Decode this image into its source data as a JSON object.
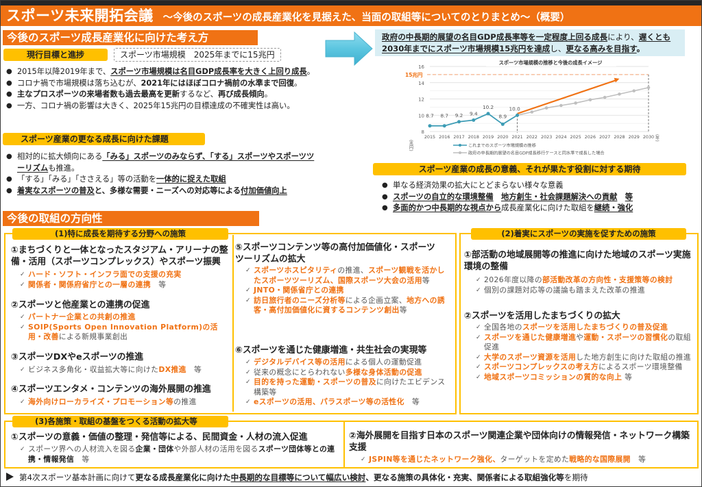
{
  "header": {
    "title": "スポーツ未来開拓会議",
    "subtitle": "～今後のスポーツの成長産業化を見据えた、当面の取組等についてのとりまとめ～（概要）"
  },
  "left_top": {
    "section_title": "今後のスポーツ成長産業化に向けた考え方",
    "goal_pill": "現行目標と進捗",
    "goal_box": "スポーツ市場規模　2025年までに15兆円",
    "bullets": [
      {
        "pre": "2015年以降2019年まで、",
        "bold": "スポーツ市場規模は名目GDP成長率を大きく上回り成長",
        "post": "。"
      },
      {
        "pre": "コロナ禍で市場規模は落ち込むが、",
        "bold": "2021年にはほぼコロナ禍前の水準まで回復",
        "post": "。"
      },
      {
        "bold1": "主なプロスポーツの来場者数も過去最高を更新",
        "mid": "するなど、",
        "bold2": "再び成長傾向",
        "post": "。"
      },
      {
        "text": "一方、コロナ禍の影響は大きく、2025年15兆円の目標達成の不確実性は高い。"
      }
    ]
  },
  "issues": {
    "pill": "スポーツ産業の更なる成長に向けた課題",
    "bullets": [
      {
        "pre": "相対的に拡大傾向にある",
        "bold": "「みる」スポーツのみならず、「する」スポーツやスポーツツーリズム",
        "post": "も推進。"
      },
      {
        "pre": "「する」「みる」「ささえる」等の活動を",
        "bold": "一体的に捉えた取組"
      },
      {
        "bold1": "着実なスポーツの普及",
        "mid": "と、多様な需要・ニーズへの対応等による",
        "bold2": "付加価値向上"
      }
    ]
  },
  "target_box": {
    "u1": "政府の中長期的展望の名目GDP成長率等を一定程度上回る成長",
    "mid": "により、",
    "u2": "遅くとも2030年までにスポーツ市場規模15兆円を達成",
    "mid2": "し、",
    "u3": "更なる高みを目指す",
    "post": "。"
  },
  "chart_data": {
    "type": "line",
    "title": "スポーツ市場規模の推移と今後の成長イメージ",
    "xlabel": "(年)",
    "ylabel": "(兆円)",
    "ylim": [
      8,
      16
    ],
    "yticks": [
      8,
      10,
      12,
      14,
      16
    ],
    "x": [
      2015,
      2016,
      2017,
      2018,
      2019,
      2020,
      2021,
      2022,
      2023,
      2024,
      2025,
      2026,
      2027,
      2028,
      2029,
      2030
    ],
    "target_line": {
      "label": "15兆円",
      "value": 15
    },
    "series": [
      {
        "name": "これまでのスポーツ市場規模の推移",
        "color": "#3d9cb5",
        "x": [
          2015,
          2016,
          2017,
          2018,
          2019,
          2020,
          2021
        ],
        "values": [
          8.7,
          8.7,
          9.2,
          9.4,
          10.2,
          8.9,
          10.0
        ]
      },
      {
        "name": "政府の中長期的展望の名目GDP成長移行ケースと同水準で成長した場合",
        "color": "#bfbfbf",
        "x": [
          2021,
          2022,
          2023,
          2024,
          2025,
          2026,
          2027,
          2028,
          2029,
          2030
        ],
        "values": [
          10.0,
          10.4,
          10.9,
          11.2,
          11.5,
          11.9,
          12.2,
          12.6,
          13.0,
          13.4
        ]
      },
      {
        "name": "成長イメージ矢印",
        "color": "#f07214",
        "x": [
          2021,
          2028
        ],
        "values": [
          10.2,
          14.5
        ]
      }
    ],
    "grid": true,
    "legend_position": "bottom"
  },
  "significance": {
    "pill": "スポーツ産業の成長の意義、それが果たす役割に対する期待",
    "bullet1": "単なる経済効果の拡大にとどまらない様々な意義",
    "bullet1_sub1": "スポーツの自立的な環境整備",
    "bullet1_sub2": "地方創生・社会課題解決への貢献",
    "bullet1_sub3": "等",
    "bullet2_bold": "多面的かつ中長期的な視点から",
    "bullet2_mid": "成長産業化に向けた取組を",
    "bullet2_bold2": "継続・強化"
  },
  "direction": {
    "section_title": "今後の取組の方向性",
    "group1": {
      "title": "(1)特に成長を期待する分野への施策",
      "items": [
        {
          "title": "①まちづくりと一体となったスタジアム・アリーナの整備・活用（スポーツコンプレックス）やスポーツ振興",
          "checks": [
            {
              "o": "ハード・ソフト・インフラ面での支援の充実"
            },
            {
              "o": "関係者・関係府省庁との一層の連携",
              "g": "　等"
            }
          ]
        },
        {
          "title": "②スポーツと他産業との連携の促進",
          "checks": [
            {
              "o": "パートナー企業との共創の推進"
            },
            {
              "o": "SOIP(Sports Open Innovation Platform)の活用・改善",
              "g": "による新規事業創出"
            }
          ]
        },
        {
          "title": "③スポーツDXやeスポーツの推進",
          "checks": [
            {
              "g": "ビジネス多角化・収益拡大等に向けた",
              "o": "DX推進",
              "g2": "　等"
            }
          ]
        },
        {
          "title": "④スポーツエンタメ・コンテンツの海外展開の推進",
          "checks": [
            {
              "o": "海外向けローカライズ・プロモーション等",
              "g": "の推進"
            }
          ]
        },
        {
          "title": "⑤スポーツコンテンツ等の高付加価値化・スポーツツーリズムの拡大",
          "checks": [
            {
              "o": "スポーツホスピタリティ",
              "g": "の推進、",
              "o2": "スポーツ観戦を活かしたスポーツツーリズム、国際スポーツ大会の活用",
              "g2": "等"
            },
            {
              "o": "JNTO・関係省庁との連携"
            },
            {
              "o": "訪日旅行者のニーズ分析等",
              "g": "による企画立案、",
              "o2": "地方への誘客・高付加価値化に資するコンテンツ創出",
              "g2": "等"
            }
          ]
        },
        {
          "title": "⑥スポーツを通じた健康増進・共生社会の実現等",
          "checks": [
            {
              "o": "デジタルデバイス等の活用",
              "g": "による個人の運動促進"
            },
            {
              "g": "従来の概念にとらわれない",
              "o": "多様な身体活動の促進"
            },
            {
              "o": "目的を持った運動・スポーツの普及",
              "g": "に向けたエビデンス構築等"
            },
            {
              "o": "eスポーツの活用、パラスポーツ等の活性化",
              "g": "　等"
            }
          ]
        }
      ]
    },
    "group2": {
      "title": "(2)着実にスポーツの実施を促すための施策",
      "items": [
        {
          "title": "①部活動の地域展開等の推進に向けた地域のスポーツ実施環境の整備",
          "checks": [
            {
              "g": "2026年度以降の",
              "o": "部活動改革の方向性・支援策等の検討"
            },
            {
              "g": "個別の課題対応等の議論も踏まえた改革の推進"
            }
          ]
        },
        {
          "title": "②スポーツを活用したまちづくりの拡大",
          "checks": [
            {
              "g": "全国各地の",
              "o": "スポーツを活用したまちづくりの普及促進"
            },
            {
              "o": "スポーツを通じた健康増進",
              "g": "や",
              "o2": "運動・スポーツの習慣化",
              "g2": "の取組促進"
            },
            {
              "o": "大学のスポーツ資源を活用",
              "g": "した地方創生に向けた取組の推進"
            },
            {
              "o": "スポーツコンプレックスの考え方",
              "g": "によるスポーツ環境整備"
            },
            {
              "o": "地域スポーツコミッションの質的な向上",
              "g": " 等"
            }
          ]
        }
      ]
    },
    "group3": {
      "title": "(3)各施策・取組の基盤をつくる活動の拡大等",
      "items": [
        {
          "title": "①スポーツの意義・価値の整理・発信等による、民間資金・人材の流入促進",
          "checks": [
            {
              "g": "スポーツ界への人材流入を図る",
              "b": "企業・団体",
              "g2": "や外部人材の活用を図る",
              "b2": "スポーツ団体等との連携・情報発信",
              "g3": "　等"
            }
          ]
        },
        {
          "title": "②海外展開を目指す日本のスポーツ関連企業や団体向けの情報発信・ネットワーク構築支援",
          "checks": [
            {
              "o": "JSPIN等を通じたネットワーク強化、",
              "g": "ターゲットを定めた",
              "o2": "戦略的な国際展開",
              "g2": "　等"
            }
          ]
        }
      ]
    }
  },
  "footer": {
    "pre": "第4次スポーツ基本計画に向けて",
    "b1": "更なる成長産業化に向けた",
    "u1": "中長期的な目標等について幅広い検討",
    "b2": "、更なる施策の具体化・充実、関係者による取組強化等",
    "post": "を期待"
  }
}
